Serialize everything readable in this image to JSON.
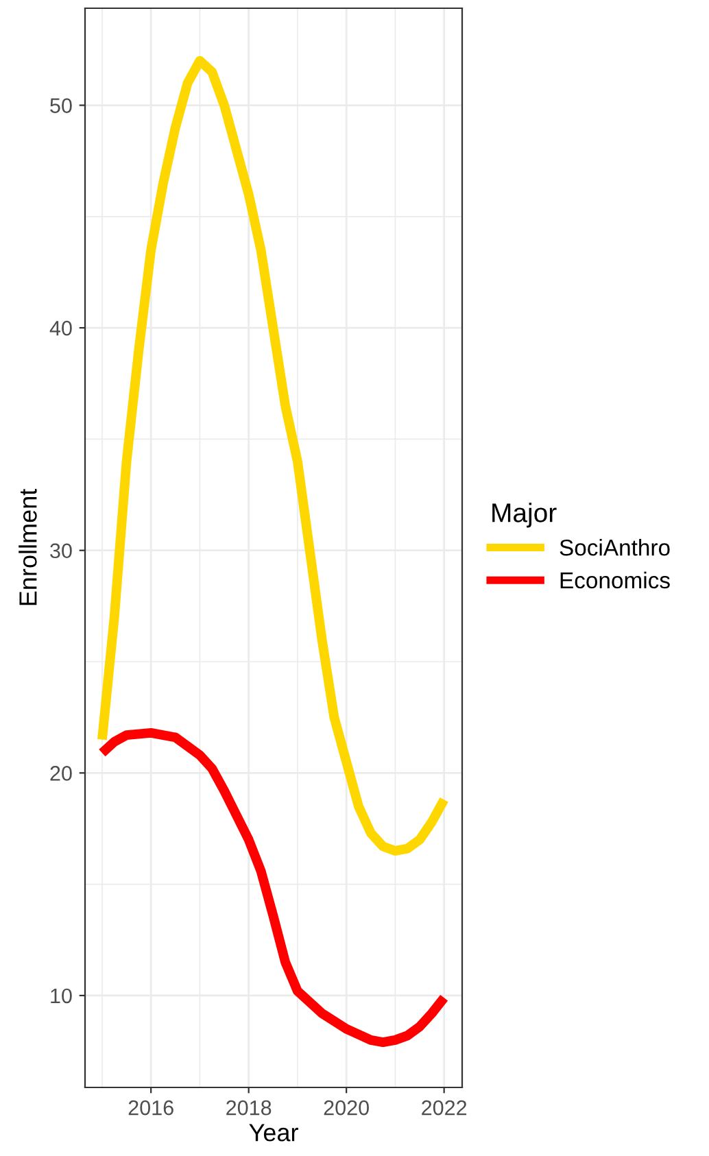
{
  "chart_data": {
    "type": "line",
    "xlabel": "Year",
    "ylabel": "Enrollment",
    "legend_title": "Major",
    "legend": "right",
    "grid": true,
    "xlim": [
      2014.65,
      2022.37
    ],
    "ylim": [
      5.87,
      54.36
    ],
    "xticks": [
      2016,
      2018,
      2020,
      2022
    ],
    "yticks": [
      10,
      20,
      30,
      40,
      50
    ],
    "series": [
      {
        "name": "SociAnthro",
        "color": "#ffd700",
        "x": [
          2015,
          2015.25,
          2015.5,
          2015.75,
          2016,
          2016.25,
          2016.5,
          2016.75,
          2017,
          2017.25,
          2017.5,
          2017.75,
          2018,
          2018.25,
          2018.5,
          2018.75,
          2019,
          2019.25,
          2019.5,
          2019.75,
          2020,
          2020.25,
          2020.5,
          2020.75,
          2021,
          2021.25,
          2021.5,
          2021.75,
          2022
        ],
        "values": [
          21.5,
          27,
          34,
          39,
          43.5,
          46.5,
          49,
          51,
          52,
          51.5,
          50,
          48,
          46,
          43.5,
          40,
          36.5,
          34,
          30,
          26,
          22.5,
          20.5,
          18.5,
          17.3,
          16.7,
          16.5,
          16.6,
          17,
          17.8,
          18.8
        ]
      },
      {
        "name": "Economics",
        "color": "#ff0000",
        "x": [
          2015,
          2015.25,
          2015.5,
          2016,
          2016.5,
          2017,
          2017.25,
          2017.5,
          2017.75,
          2018,
          2018.25,
          2018.5,
          2018.75,
          2019,
          2019.5,
          2020,
          2020.5,
          2020.75,
          2021,
          2021.25,
          2021.5,
          2021.75,
          2022
        ],
        "values": [
          20.9,
          21.4,
          21.7,
          21.8,
          21.6,
          20.8,
          20.2,
          19.2,
          18.1,
          17,
          15.6,
          13.6,
          11.5,
          10.2,
          9.2,
          8.5,
          8.0,
          7.9,
          8.0,
          8.2,
          8.6,
          9.2,
          9.9
        ]
      }
    ]
  }
}
